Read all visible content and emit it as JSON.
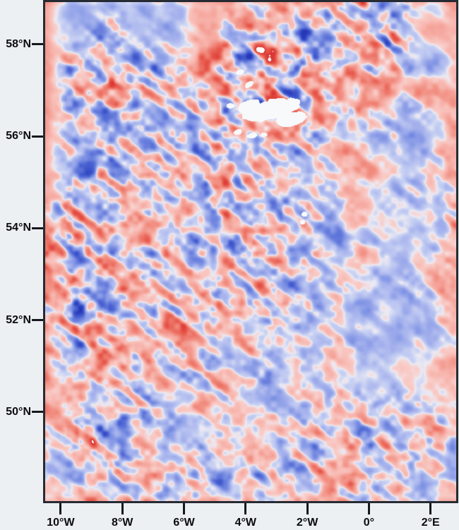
{
  "figure": {
    "margin_bg": "#edf0f3",
    "frame_color": "#262b33",
    "tick_color": "#15181d",
    "label_color": "#0a0c10"
  },
  "axes": {
    "x": {
      "range": [
        -10.502,
        2.831
      ],
      "ticks": [
        {
          "value": -10,
          "label": "10°W"
        },
        {
          "value": -8,
          "label": "8°W"
        },
        {
          "value": -6,
          "label": "6°W"
        },
        {
          "value": -4,
          "label": "4°W"
        },
        {
          "value": -2,
          "label": "2°W"
        },
        {
          "value": 0,
          "label": "0°"
        },
        {
          "value": 2,
          "label": "2°E"
        }
      ]
    },
    "y": {
      "range": [
        48.062,
        58.919
      ],
      "ticks": [
        {
          "value": 58,
          "label": "58°N"
        },
        {
          "value": 56,
          "label": "56°N"
        },
        {
          "value": 54,
          "label": "54°N"
        },
        {
          "value": 52,
          "label": "52°N"
        },
        {
          "value": 50,
          "label": "50°N"
        }
      ]
    }
  },
  "chart_data": {
    "type": "heatmap",
    "x_range": [
      -10.502,
      2.831
    ],
    "y_range": [
      48.062,
      58.919
    ],
    "colormap": {
      "stops": [
        {
          "v": -1.3,
          "color": "#2638b8"
        },
        {
          "v": -0.9,
          "color": "#4a62d2"
        },
        {
          "v": -0.55,
          "color": "#7e92e4"
        },
        {
          "v": -0.28,
          "color": "#aab6ee"
        },
        {
          "v": -0.1,
          "color": "#c9d2f3"
        },
        {
          "v": 0.0,
          "color": "#eceaf3"
        },
        {
          "v": 0.1,
          "color": "#f9cdc9"
        },
        {
          "v": 0.3,
          "color": "#f7b3ab"
        },
        {
          "v": 0.6,
          "color": "#f18a7d"
        },
        {
          "v": 0.95,
          "color": "#e7564a"
        },
        {
          "v": 1.3,
          "color": "#d52e2e"
        }
      ],
      "saturation_white_above": 1.24,
      "masked_color": "#f7f9fb"
    },
    "grid": {
      "cols": 14,
      "rows": 17,
      "base": [
        [
          0.3,
          -0.25,
          0.1,
          -0.3,
          -0.2,
          0.3,
          0.3,
          0.25,
          0.3,
          0.1,
          0.2,
          -0.2,
          -0.3,
          0.3
        ],
        [
          0.3,
          -0.25,
          0.0,
          -0.3,
          -0.3,
          0.3,
          0.1,
          0.0,
          0.0,
          0.1,
          0.2,
          -0.1,
          0.3,
          0.3
        ],
        [
          0.3,
          -0.1,
          0.0,
          -0.2,
          -0.1,
          0.2,
          0.0,
          0.0,
          -0.1,
          0.1,
          0.2,
          0.1,
          -0.3,
          0.2
        ],
        [
          0.3,
          0.0,
          0.0,
          -0.1,
          0.1,
          0.0,
          0.0,
          0.2,
          0.0,
          0.2,
          0.1,
          -0.2,
          0.2,
          0.3
        ],
        [
          0.3,
          -0.1,
          0.0,
          0.0,
          -0.2,
          0.1,
          0.0,
          0.0,
          0.1,
          0.2,
          -0.1,
          -0.25,
          -0.2,
          0.25
        ],
        [
          0.3,
          0.0,
          -0.1,
          0.0,
          0.1,
          0.0,
          0.1,
          -0.1,
          -0.2,
          0.2,
          0.25,
          -0.15,
          -0.25,
          0.2
        ],
        [
          0.3,
          -0.1,
          0.0,
          -0.1,
          0.0,
          0.1,
          0.1,
          0.0,
          -0.1,
          -0.1,
          0.2,
          -0.2,
          -0.1,
          0.2
        ],
        [
          0.2,
          0.0,
          0.0,
          0.1,
          0.0,
          0.0,
          0.1,
          0.0,
          0.0,
          -0.2,
          0.1,
          -0.1,
          -0.25,
          0.1
        ],
        [
          0.2,
          0.0,
          -0.1,
          0.0,
          0.1,
          0.0,
          0.1,
          0.1,
          0.0,
          -0.1,
          0.2,
          -0.1,
          -0.2,
          0.2
        ],
        [
          0.25,
          0.0,
          0.0,
          0.1,
          0.0,
          0.1,
          0.0,
          0.1,
          0.1,
          0.2,
          0.1,
          -0.2,
          -0.1,
          0.1
        ],
        [
          0.2,
          0.0,
          0.0,
          -0.1,
          0.0,
          0.1,
          0.1,
          0.0,
          -0.1,
          0.1,
          -0.1,
          -0.2,
          -0.25,
          0.1
        ],
        [
          0.25,
          0.0,
          0.0,
          0.0,
          0.1,
          0.15,
          0.0,
          0.1,
          0.1,
          0.15,
          -0.1,
          -0.25,
          -0.2,
          0.1
        ],
        [
          0.3,
          0.1,
          0.0,
          0.0,
          -0.1,
          0.1,
          0.0,
          -0.1,
          0.1,
          0.1,
          -0.15,
          -0.2,
          -0.15,
          0.15
        ],
        [
          0.25,
          -0.1,
          0.0,
          0.1,
          -0.2,
          -0.1,
          -0.15,
          -0.1,
          0.1,
          0.0,
          0.1,
          0.0,
          -0.1,
          0.15
        ],
        [
          0.2,
          0.0,
          0.0,
          0.0,
          -0.25,
          -0.15,
          -0.1,
          0.15,
          0.0,
          0.1,
          0.0,
          0.1,
          0.0,
          0.1
        ],
        [
          0.05,
          0.0,
          0.0,
          0.0,
          -0.1,
          0.0,
          0.0,
          0.0,
          -0.1,
          0.0,
          0.1,
          0.0,
          -0.1,
          0.1
        ],
        [
          0.1,
          0.1,
          -0.1,
          0.0,
          -0.15,
          0.0,
          -0.1,
          0.0,
          -0.1,
          0.0,
          -0.1,
          0.0,
          -0.15,
          0.2
        ]
      ],
      "activity": [
        [
          0.05,
          0.1,
          0.2,
          0.1,
          0.15,
          0.1,
          0.2,
          0.3,
          0.3,
          0.5,
          0.5,
          0.7,
          0.2,
          0.1
        ],
        [
          0.05,
          0.2,
          0.45,
          0.15,
          0.2,
          0.15,
          0.5,
          0.75,
          0.7,
          0.6,
          0.55,
          0.7,
          0.15,
          0.1
        ],
        [
          0.1,
          0.6,
          0.6,
          0.5,
          0.4,
          0.4,
          0.8,
          0.85,
          0.8,
          0.6,
          0.5,
          0.5,
          0.2,
          0.2
        ],
        [
          0.1,
          0.65,
          0.65,
          0.55,
          0.45,
          0.6,
          0.85,
          0.9,
          0.8,
          0.6,
          0.5,
          0.4,
          0.3,
          0.2
        ],
        [
          0.1,
          0.6,
          0.6,
          0.55,
          0.5,
          0.55,
          0.7,
          0.7,
          0.6,
          0.45,
          0.35,
          0.25,
          0.2,
          0.2
        ],
        [
          0.1,
          0.5,
          0.55,
          0.5,
          0.5,
          0.6,
          0.6,
          0.55,
          0.45,
          0.3,
          0.25,
          0.25,
          0.2,
          0.25
        ],
        [
          0.15,
          0.6,
          0.6,
          0.5,
          0.55,
          0.65,
          0.6,
          0.55,
          0.5,
          0.35,
          0.25,
          0.25,
          0.25,
          0.4
        ],
        [
          0.4,
          0.7,
          0.55,
          0.5,
          0.5,
          0.55,
          0.55,
          0.6,
          0.5,
          0.3,
          0.25,
          0.2,
          0.2,
          0.35
        ],
        [
          0.45,
          0.7,
          0.6,
          0.5,
          0.5,
          0.55,
          0.65,
          0.6,
          0.5,
          0.35,
          0.3,
          0.2,
          0.2,
          0.3
        ],
        [
          0.3,
          0.65,
          0.6,
          0.5,
          0.5,
          0.5,
          0.55,
          0.55,
          0.45,
          0.3,
          0.25,
          0.25,
          0.3,
          0.35
        ],
        [
          0.4,
          0.75,
          0.65,
          0.5,
          0.5,
          0.5,
          0.5,
          0.45,
          0.4,
          0.3,
          0.25,
          0.2,
          0.2,
          0.3
        ],
        [
          0.3,
          0.6,
          0.55,
          0.45,
          0.4,
          0.4,
          0.4,
          0.4,
          0.35,
          0.3,
          0.2,
          0.15,
          0.15,
          0.25
        ],
        [
          0.2,
          0.45,
          0.5,
          0.45,
          0.4,
          0.4,
          0.35,
          0.35,
          0.3,
          0.25,
          0.2,
          0.15,
          0.15,
          0.25
        ],
        [
          0.25,
          0.5,
          0.65,
          0.55,
          0.35,
          0.35,
          0.3,
          0.3,
          0.35,
          0.4,
          0.45,
          0.4,
          0.3,
          0.3
        ],
        [
          0.3,
          0.6,
          0.65,
          0.5,
          0.3,
          0.3,
          0.35,
          0.35,
          0.45,
          0.5,
          0.55,
          0.5,
          0.45,
          0.35
        ],
        [
          0.3,
          0.5,
          0.55,
          0.5,
          0.45,
          0.5,
          0.5,
          0.45,
          0.45,
          0.5,
          0.5,
          0.45,
          0.4,
          0.3
        ],
        [
          0.15,
          0.35,
          0.4,
          0.45,
          0.35,
          0.4,
          0.4,
          0.4,
          0.4,
          0.45,
          0.4,
          0.4,
          0.3,
          0.2
        ]
      ]
    },
    "noise": {
      "streak_angle_deg": -38,
      "streak_scale": [
        38,
        11
      ],
      "octave2_scale": 16,
      "octave3_scale": 8.5,
      "octave_weights": [
        1.05,
        0.8,
        0.5
      ],
      "weight_norm": 1.6,
      "amp": 1.7,
      "large_scale": 85,
      "large_amp": 0.14,
      "seeds": [
        7,
        13,
        29,
        3
      ]
    },
    "masked_regions": [
      {
        "lon": -3.2,
        "lat": 56.58,
        "rx": 0.96,
        "ry": 0.21,
        "rot": -14
      },
      {
        "lon": -3.9,
        "lat": 56.65,
        "rx": 0.37,
        "ry": 0.14,
        "rot": -20
      },
      {
        "lon": -2.53,
        "lat": 56.38,
        "rx": 0.5,
        "ry": 0.15,
        "rot": -12
      },
      {
        "lon": -4.18,
        "lat": 57.4,
        "rx": 0.14,
        "ry": 0.06,
        "rot": -20
      },
      {
        "lon": -3.9,
        "lat": 57.13,
        "rx": 0.16,
        "ry": 0.06,
        "rot": -30
      },
      {
        "lon": -4.5,
        "lat": 56.67,
        "rx": 0.14,
        "ry": 0.06,
        "rot": 0
      },
      {
        "lon": -4.27,
        "lat": 56.1,
        "rx": 0.14,
        "ry": 0.06,
        "rot": -20
      },
      {
        "lon": -3.81,
        "lat": 56.02,
        "rx": 0.18,
        "ry": 0.06,
        "rot": -10
      },
      {
        "lon": -3.42,
        "lat": 56.04,
        "rx": 0.11,
        "ry": 0.05,
        "rot": 0
      },
      {
        "lon": -2.1,
        "lat": 54.31,
        "rx": 0.11,
        "ry": 0.06,
        "rot": 0
      },
      {
        "lon": -2.17,
        "lat": 54.14,
        "rx": 0.09,
        "ry": 0.05,
        "rot": 0
      }
    ]
  }
}
